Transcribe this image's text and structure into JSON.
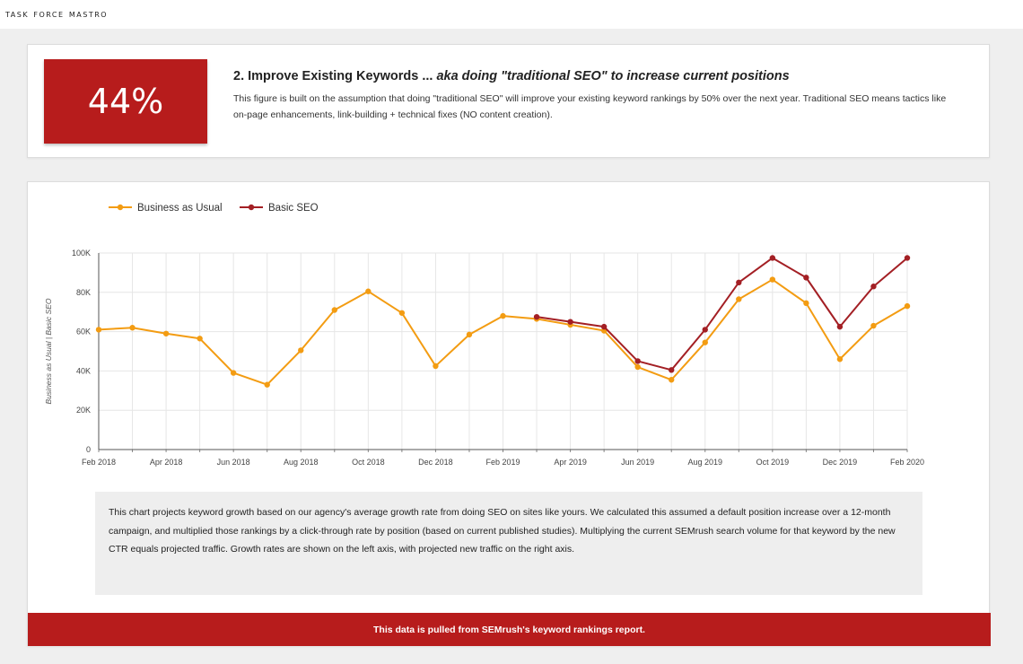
{
  "header": {
    "brand": "Task Force Mastro"
  },
  "summary": {
    "percent": "44%",
    "headline_main": "2. Improve Existing Keywords ... ",
    "headline_emphasis": "aka doing \"traditional SEO\" to increase current positions",
    "description": "This figure is built on the assumption that doing \"traditional SEO\" will improve your existing keyword rankings by 50% over the next year. Traditional SEO means tactics like on-page enhancements, link-building + technical fixes (NO content creation)."
  },
  "colors": {
    "accent": "#b71c1c",
    "business_as_usual": "#f39c12",
    "basic_seo": "#a31f24"
  },
  "chart_data": {
    "type": "line",
    "title": "",
    "xlabel": "",
    "ylabel": "Business as Usual | Basic SEO",
    "x": [
      "Feb 2018",
      "Mar 2018",
      "Apr 2018",
      "May 2018",
      "Jun 2018",
      "Jul 2018",
      "Aug 2018",
      "Sep 2018",
      "Oct 2018",
      "Nov 2018",
      "Dec 2018",
      "Jan 2019",
      "Feb 2019",
      "Mar 2019",
      "Apr 2019",
      "May 2019",
      "Jun 2019",
      "Jul 2019",
      "Aug 2019",
      "Sep 2019",
      "Oct 2019",
      "Nov 2019",
      "Dec 2019",
      "Jan 2020",
      "Feb 2020"
    ],
    "x_tick_labels": [
      "Feb 2018",
      "Apr 2018",
      "Jun 2018",
      "Aug 2018",
      "Oct 2018",
      "Dec 2018",
      "Feb 2019",
      "Apr 2019",
      "Jun 2019",
      "Aug 2019",
      "Oct 2019",
      "Dec 2019",
      "Feb 2020"
    ],
    "y_tick_labels": [
      "0",
      "20K",
      "40K",
      "60K",
      "80K",
      "100K"
    ],
    "ylim": [
      0,
      100000
    ],
    "grid": true,
    "legend_position": "top-left",
    "series": [
      {
        "name": "Business as Usual",
        "values": [
          61000,
          62000,
          59000,
          56500,
          39000,
          33000,
          50500,
          71000,
          80500,
          69500,
          42500,
          58500,
          68000,
          66500,
          63500,
          60500,
          42000,
          35500,
          54500,
          76500,
          86500,
          74500,
          46000,
          63000,
          73000
        ]
      },
      {
        "name": "Basic SEO",
        "values": [
          null,
          null,
          null,
          null,
          null,
          null,
          null,
          null,
          null,
          null,
          null,
          null,
          null,
          67500,
          65000,
          62500,
          45000,
          40500,
          61000,
          85000,
          97500,
          87500,
          62500,
          83000,
          97500
        ]
      }
    ]
  },
  "note": "This chart projects keyword growth based on our agency's average growth rate from doing SEO on sites like yours. We calculated this assumed a default position increase over a 12-month campaign, and multiplied those rankings by a click-through rate by position (based on current published studies). Multiplying the current SEMrush search volume for that keyword by the new CTR equals projected traffic. Growth rates are shown on the left axis, with projected new traffic on the right axis.",
  "footer": "This data is pulled from SEMrush's keyword rankings report."
}
